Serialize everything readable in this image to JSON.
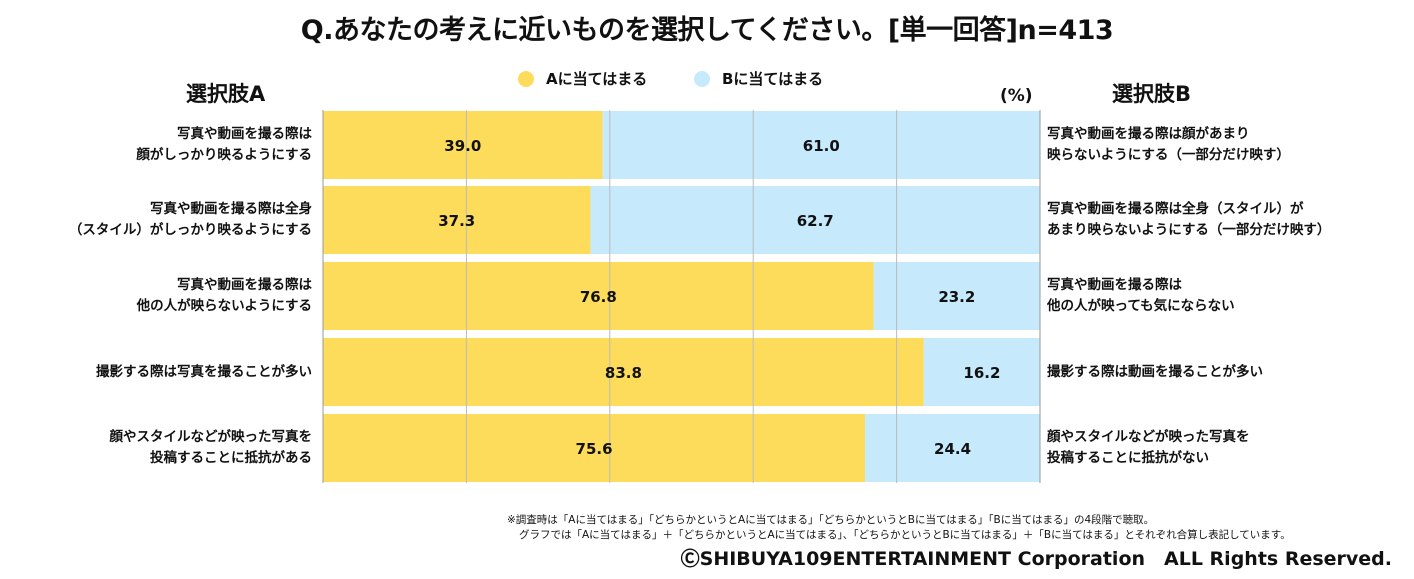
{
  "title": "Q.あなたの考えに近いものを選択してください。[単一回答]n=413",
  "legend": {
    "a_label": "Aに当てはまる",
    "b_label": "Bに当てはまる"
  },
  "headers": {
    "choice_a": "選択肢A",
    "choice_b": "選択肢B",
    "unit": "(%)"
  },
  "colors": {
    "a": "#FDDC5C",
    "b": "#C6E9FB",
    "grid": "#bbbbbb"
  },
  "chart_data": {
    "type": "bar",
    "orientation": "horizontal",
    "stacked": true,
    "xlim": [
      0,
      100
    ],
    "grid": true,
    "legend_position": "top",
    "categories_a": [
      "写真や動画を撮る際は\n顔がしっかり映るようにする",
      "写真や動画を撮る際は全身\n（スタイル）がしっかり映るようにする",
      "写真や動画を撮る際は\n他の人が映らないようにする",
      "撮影する際は写真を撮ることが多い",
      "顔やスタイルなどが映った写真を\n投稿することに抵抗がある"
    ],
    "categories_b": [
      "写真や動画を撮る際は顔があまり\n映らないようにする（一部分だけ映す）",
      "写真や動画を撮る際は全身（スタイル）が\nあまり映らないようにする（一部分だけ映す）",
      "写真や動画を撮る際は\n他の人が映っても気にならない",
      "撮影する際は動画を撮ることが多い",
      "顔やスタイルなどが映った写真を\n投稿することに抵抗がない"
    ],
    "series": [
      {
        "name": "Aに当てはまる",
        "values": [
          39.0,
          37.3,
          76.8,
          83.8,
          75.6
        ]
      },
      {
        "name": "Bに当てはまる",
        "values": [
          61.0,
          62.7,
          23.2,
          16.2,
          24.4
        ]
      }
    ]
  },
  "notes": [
    "※調査時は「Aに当てはまる」「どちらかというとAに当てはまる」「どちらかというとBに当てはまる」「Bに当てはまる」の4段階で聴取。",
    "グラフでは「Aに当てはまる」＋「どちらかというとAに当てはまる」、「どちらかというとBに当てはまる」＋「Bに当てはまる」とそれぞれ合算し表記しています。"
  ],
  "copyright": "ⒸSHIBUYA109ENTERTAINMENT Corporation　ALL Rights Reserved."
}
